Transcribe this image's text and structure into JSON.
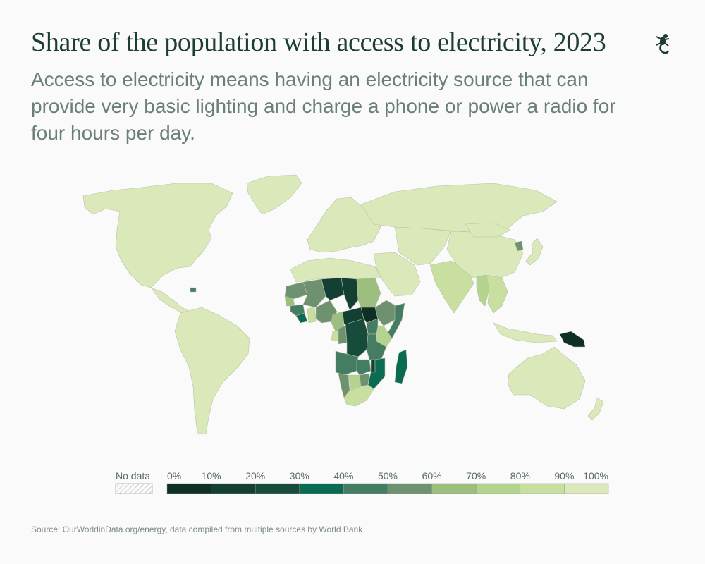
{
  "header": {
    "title": "Share of the population with access to electricity, 2023",
    "subtitle": "Access to electricity means having an electricity source that can provide very basic lighting and charge a phone or power a radio for four hours per day."
  },
  "map_data": {
    "type": "choropleth",
    "variable": "Share of the population with access to electricity",
    "unit": "%",
    "year": 2023,
    "legend": {
      "no_data_label": "No data",
      "ticks": [
        "0%",
        "10%",
        "20%",
        "30%",
        "40%",
        "50%",
        "60%",
        "70%",
        "80%",
        "90%",
        "100%"
      ],
      "colors": [
        "#0f2e26",
        "#143f33",
        "#174c3d",
        "#0b6b52",
        "#457d62",
        "#6e9270",
        "#9cbe7e",
        "#b4d38f",
        "#c8df9f",
        "#dbe8b9"
      ],
      "no_data_color": "#ffffff"
    },
    "regions": [
      {
        "name": "North America",
        "bin": 9
      },
      {
        "name": "Central America",
        "bin": 9
      },
      {
        "name": "Haiti",
        "bin": 4
      },
      {
        "name": "South America",
        "bin": 9
      },
      {
        "name": "Greenland",
        "bin": 9
      },
      {
        "name": "Europe",
        "bin": 9
      },
      {
        "name": "Russia",
        "bin": 9
      },
      {
        "name": "Middle East",
        "bin": 9
      },
      {
        "name": "Central Asia",
        "bin": 9
      },
      {
        "name": "South Asia",
        "bin": 8
      },
      {
        "name": "China",
        "bin": 9
      },
      {
        "name": "Mongolia",
        "bin": 9
      },
      {
        "name": "North Korea",
        "bin": 5
      },
      {
        "name": "Japan",
        "bin": 9
      },
      {
        "name": "Myanmar",
        "bin": 7
      },
      {
        "name": "Southeast Asia",
        "bin": 8
      },
      {
        "name": "Indonesia",
        "bin": 9
      },
      {
        "name": "Papua New Guinea",
        "bin": 0
      },
      {
        "name": "Australia",
        "bin": 9
      },
      {
        "name": "New Zealand",
        "bin": 9
      },
      {
        "name": "North Africa",
        "bin": 9
      },
      {
        "name": "Sudan",
        "bin": 6
      },
      {
        "name": "Mauritania",
        "bin": 5
      },
      {
        "name": "Mali",
        "bin": 5
      },
      {
        "name": "Niger",
        "bin": 1
      },
      {
        "name": "Chad",
        "bin": 1
      },
      {
        "name": "Nigeria",
        "bin": 5
      },
      {
        "name": "Senegal",
        "bin": 6
      },
      {
        "name": "Guinea",
        "bin": 4
      },
      {
        "name": "Liberia",
        "bin": 3
      },
      {
        "name": "Ghana",
        "bin": 8
      },
      {
        "name": "Cameroon",
        "bin": 6
      },
      {
        "name": "Central African Republic",
        "bin": 1
      },
      {
        "name": "South Sudan",
        "bin": 0
      },
      {
        "name": "Ethiopia",
        "bin": 5
      },
      {
        "name": "Somalia",
        "bin": 4
      },
      {
        "name": "Kenya",
        "bin": 7
      },
      {
        "name": "Uganda",
        "bin": 4
      },
      {
        "name": "DR Congo",
        "bin": 2
      },
      {
        "name": "Congo",
        "bin": 5
      },
      {
        "name": "Gabon",
        "bin": 8
      },
      {
        "name": "Tanzania",
        "bin": 4
      },
      {
        "name": "Angola",
        "bin": 4
      },
      {
        "name": "Zambia",
        "bin": 4
      },
      {
        "name": "Malawi",
        "bin": 1
      },
      {
        "name": "Mozambique",
        "bin": 3
      },
      {
        "name": "Madagascar",
        "bin": 3
      },
      {
        "name": "Namibia",
        "bin": 5
      },
      {
        "name": "Botswana",
        "bin": 7
      },
      {
        "name": "Zimbabwe",
        "bin": 5
      },
      {
        "name": "South Africa",
        "bin": 8
      }
    ]
  },
  "footer": {
    "source": "Source: OurWorldinData.org/energy, data compiled from multiple sources by World Bank"
  }
}
